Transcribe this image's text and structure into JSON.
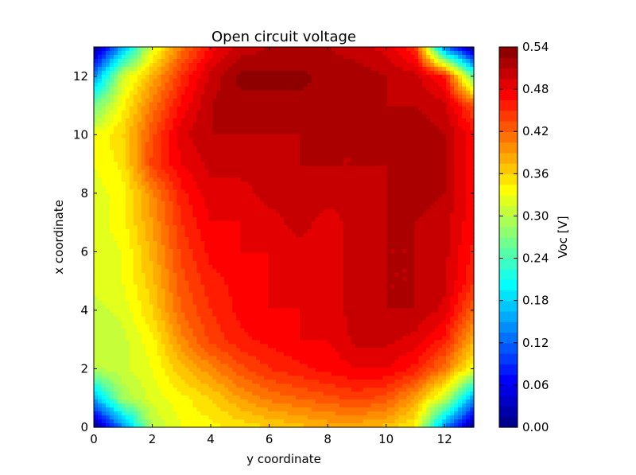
{
  "chart_data": {
    "type": "heatmap",
    "title": "Open circuit voltage",
    "xlabel": "y coordinate",
    "ylabel": "x coordinate",
    "xlim": [
      0,
      13
    ],
    "ylim": [
      0,
      13
    ],
    "x_ticks": [
      0,
      2,
      4,
      6,
      8,
      10,
      12
    ],
    "y_ticks": [
      0,
      2,
      4,
      6,
      8,
      10,
      12
    ],
    "colorbar": {
      "label": "Voc [V]",
      "range": [
        0.0,
        0.54
      ],
      "ticks": [
        "0.00",
        "0.06",
        "0.12",
        "0.18",
        "0.24",
        "0.30",
        "0.36",
        "0.42",
        "0.48",
        "0.54"
      ],
      "colormap": "jet"
    },
    "grid_x": [
      0,
      1,
      2,
      3,
      4,
      5,
      6,
      7,
      8,
      9,
      10,
      11,
      12,
      13
    ],
    "grid_y": [
      0,
      1,
      2,
      3,
      4,
      5,
      6,
      7,
      8,
      9,
      10,
      11,
      12,
      13
    ],
    "z": [
      [
        0.0,
        0.14,
        0.3,
        0.33,
        0.34,
        0.35,
        0.36,
        0.37,
        0.38,
        0.38,
        0.37,
        0.34,
        0.14,
        0.0
      ],
      [
        0.16,
        0.29,
        0.32,
        0.34,
        0.36,
        0.39,
        0.41,
        0.42,
        0.43,
        0.44,
        0.43,
        0.39,
        0.31,
        0.15
      ],
      [
        0.3,
        0.31,
        0.33,
        0.37,
        0.4,
        0.43,
        0.45,
        0.46,
        0.47,
        0.48,
        0.48,
        0.46,
        0.41,
        0.33
      ],
      [
        0.3,
        0.31,
        0.34,
        0.4,
        0.44,
        0.46,
        0.47,
        0.48,
        0.48,
        0.5,
        0.5,
        0.49,
        0.46,
        0.38
      ],
      [
        0.31,
        0.32,
        0.36,
        0.42,
        0.45,
        0.47,
        0.48,
        0.48,
        0.49,
        0.5,
        0.51,
        0.51,
        0.49,
        0.42
      ],
      [
        0.32,
        0.33,
        0.37,
        0.43,
        0.46,
        0.47,
        0.48,
        0.49,
        0.49,
        0.5,
        0.51,
        0.51,
        0.5,
        0.45
      ],
      [
        0.32,
        0.33,
        0.38,
        0.44,
        0.47,
        0.48,
        0.48,
        0.49,
        0.49,
        0.5,
        0.51,
        0.51,
        0.5,
        0.46
      ],
      [
        0.32,
        0.34,
        0.39,
        0.45,
        0.48,
        0.48,
        0.49,
        0.5,
        0.49,
        0.5,
        0.51,
        0.51,
        0.5,
        0.47
      ],
      [
        0.32,
        0.34,
        0.4,
        0.46,
        0.49,
        0.49,
        0.5,
        0.5,
        0.5,
        0.5,
        0.51,
        0.52,
        0.51,
        0.47
      ],
      [
        0.33,
        0.35,
        0.44,
        0.48,
        0.5,
        0.5,
        0.5,
        0.51,
        0.51,
        0.51,
        0.51,
        0.52,
        0.51,
        0.47
      ],
      [
        0.33,
        0.36,
        0.43,
        0.49,
        0.51,
        0.51,
        0.51,
        0.51,
        0.51,
        0.51,
        0.52,
        0.52,
        0.51,
        0.47
      ],
      [
        0.26,
        0.34,
        0.41,
        0.47,
        0.51,
        0.52,
        0.52,
        0.52,
        0.52,
        0.51,
        0.51,
        0.51,
        0.5,
        0.43
      ],
      [
        0.14,
        0.31,
        0.38,
        0.45,
        0.5,
        0.53,
        0.53,
        0.53,
        0.52,
        0.52,
        0.51,
        0.5,
        0.46,
        0.25
      ],
      [
        0.0,
        0.16,
        0.32,
        0.41,
        0.47,
        0.5,
        0.51,
        0.51,
        0.51,
        0.5,
        0.49,
        0.45,
        0.13,
        0.0
      ]
    ]
  }
}
